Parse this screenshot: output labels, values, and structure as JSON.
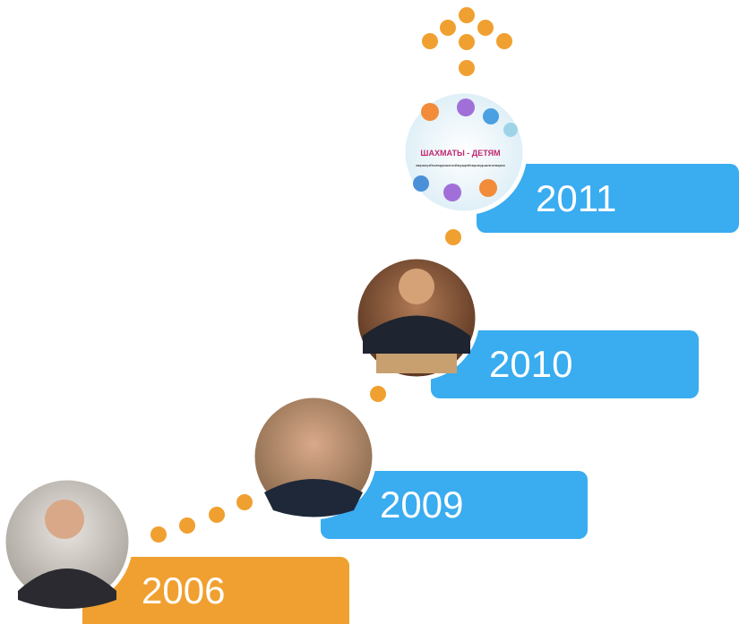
{
  "timeline": {
    "items": [
      {
        "year": "2006"
      },
      {
        "year": "2009"
      },
      {
        "year": "2010"
      },
      {
        "year": "2011"
      }
    ],
    "logo": {
      "title": "ШАХМАТЫ - ДЕТЯМ",
      "subtitle": "авторское учебно-методическое пособие для детей старшего дошкольного возраста"
    }
  }
}
